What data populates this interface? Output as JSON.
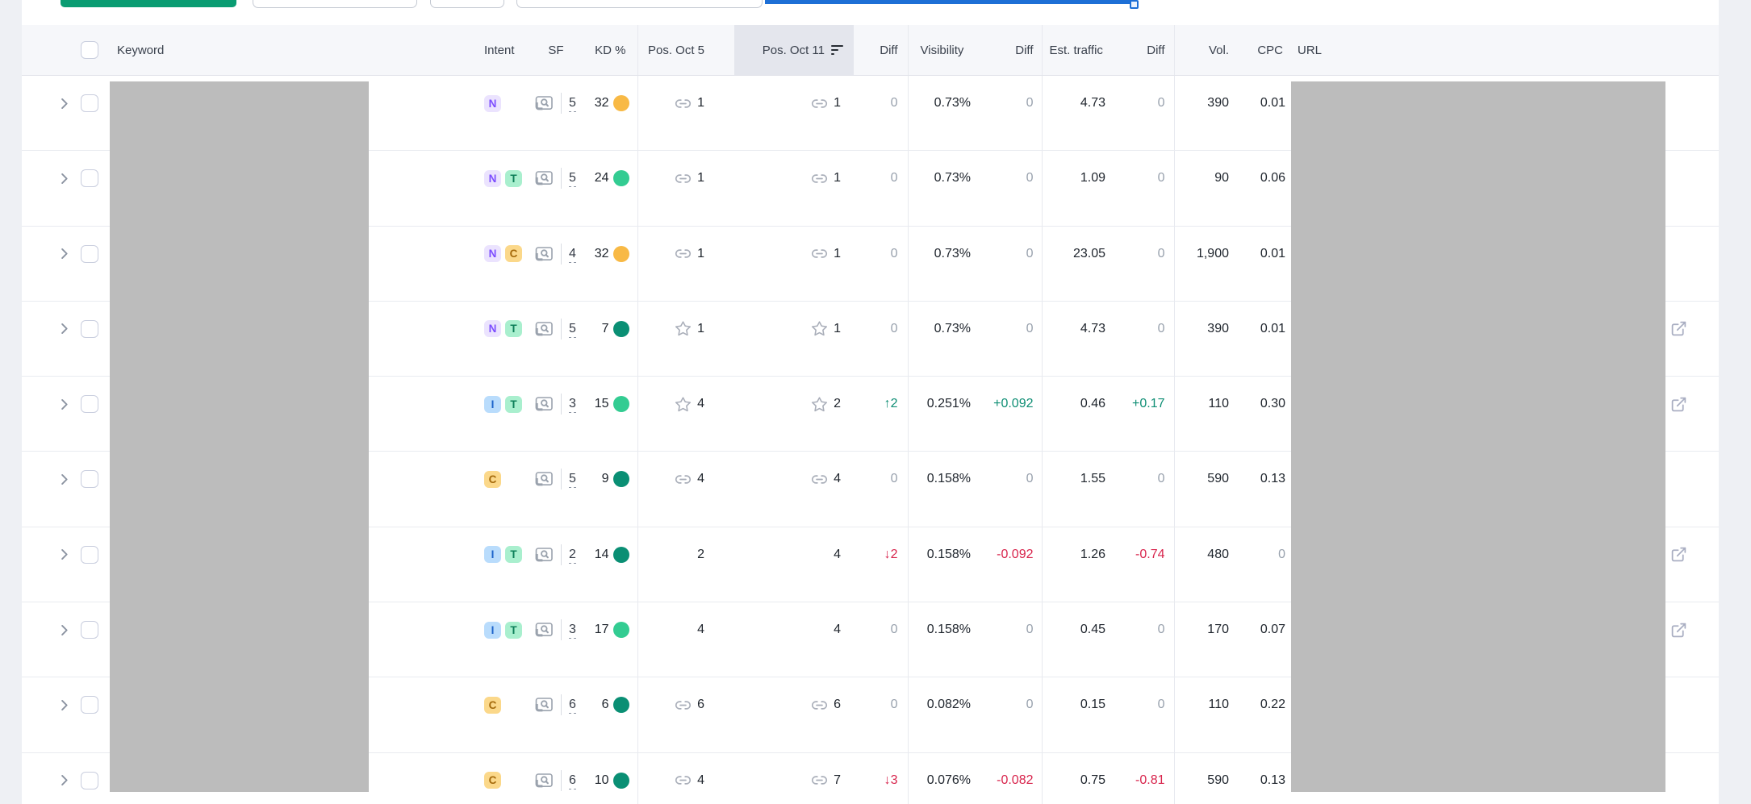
{
  "colors": {
    "accent_green_button": "#0a9c72",
    "slider_blue": "#1d6fd6",
    "positive": "#0e8e74",
    "negative": "#d8244c",
    "muted_zero": "#98a1ad",
    "kd_amber": "#f8b945",
    "kd_light_green": "#33cc92",
    "kd_dark_green": "#0a8f74",
    "sorted_header_bg": "#e4e6ed",
    "header_bg": "#f6f7fa",
    "redaction_gray": "#bcbcbc"
  },
  "header": {
    "keyword": "Keyword",
    "intent": "Intent",
    "sf": "SF",
    "kd": "KD %",
    "pos_oct5": "Pos. Oct 5",
    "pos_oct11": "Pos. Oct 11",
    "diff": "Diff",
    "visibility": "Visibility",
    "est_traffic": "Est. traffic",
    "vol": "Vol.",
    "cpc": "CPC",
    "url": "URL"
  },
  "table": {
    "sorted_column": "Pos. Oct 11",
    "rows": [
      {
        "intents": [
          "N"
        ],
        "sf": "5",
        "kd": "32",
        "kd_tone": "amber",
        "pos_icon": "link",
        "pos_oct5": "1",
        "pos_oct11": "1",
        "diff": {
          "text": "0",
          "tone": "zero"
        },
        "visibility": "0.73%",
        "visibility_diff": {
          "text": "0",
          "tone": "zero"
        },
        "est_traffic": "4.73",
        "est_traffic_diff": {
          "text": "0",
          "tone": "zero"
        },
        "volume": "390",
        "cpc": "0.01",
        "cpc_tone": "",
        "url_external_link": false
      },
      {
        "intents": [
          "N",
          "T"
        ],
        "sf": "5",
        "kd": "24",
        "kd_tone": "light",
        "pos_icon": "link",
        "pos_oct5": "1",
        "pos_oct11": "1",
        "diff": {
          "text": "0",
          "tone": "zero"
        },
        "visibility": "0.73%",
        "visibility_diff": {
          "text": "0",
          "tone": "zero"
        },
        "est_traffic": "1.09",
        "est_traffic_diff": {
          "text": "0",
          "tone": "zero"
        },
        "volume": "90",
        "cpc": "0.06",
        "cpc_tone": "",
        "url_external_link": false
      },
      {
        "intents": [
          "N",
          "C"
        ],
        "sf": "4",
        "kd": "32",
        "kd_tone": "amber",
        "pos_icon": "link",
        "pos_oct5": "1",
        "pos_oct11": "1",
        "diff": {
          "text": "0",
          "tone": "zero"
        },
        "visibility": "0.73%",
        "visibility_diff": {
          "text": "0",
          "tone": "zero"
        },
        "est_traffic": "23.05",
        "est_traffic_diff": {
          "text": "0",
          "tone": "zero"
        },
        "volume": "1,900",
        "cpc": "0.01",
        "cpc_tone": "",
        "url_external_link": false
      },
      {
        "intents": [
          "N",
          "T"
        ],
        "sf": "5",
        "kd": "7",
        "kd_tone": "dark",
        "pos_icon": "star",
        "pos_oct5": "1",
        "pos_oct11": "1",
        "diff": {
          "text": "0",
          "tone": "zero"
        },
        "visibility": "0.73%",
        "visibility_diff": {
          "text": "0",
          "tone": "zero"
        },
        "est_traffic": "4.73",
        "est_traffic_diff": {
          "text": "0",
          "tone": "zero"
        },
        "volume": "390",
        "cpc": "0.01",
        "cpc_tone": "",
        "url_external_link": true
      },
      {
        "intents": [
          "I",
          "T"
        ],
        "sf": "3",
        "kd": "15",
        "kd_tone": "light",
        "pos_icon": "star",
        "pos_oct5": "4",
        "pos_oct11": "2",
        "diff": {
          "text": "↑2",
          "tone": "up"
        },
        "visibility": "0.251%",
        "visibility_diff": {
          "text": "+0.092",
          "tone": "up"
        },
        "est_traffic": "0.46",
        "est_traffic_diff": {
          "text": "+0.17",
          "tone": "up"
        },
        "volume": "110",
        "cpc": "0.30",
        "cpc_tone": "",
        "url_external_link": true
      },
      {
        "intents": [
          "C"
        ],
        "sf": "5",
        "kd": "9",
        "kd_tone": "dark",
        "pos_icon": "link",
        "pos_oct5": "4",
        "pos_oct11": "4",
        "diff": {
          "text": "0",
          "tone": "zero"
        },
        "visibility": "0.158%",
        "visibility_diff": {
          "text": "0",
          "tone": "zero"
        },
        "est_traffic": "1.55",
        "est_traffic_diff": {
          "text": "0",
          "tone": "zero"
        },
        "volume": "590",
        "cpc": "0.13",
        "cpc_tone": "",
        "url_external_link": false
      },
      {
        "intents": [
          "I",
          "T"
        ],
        "sf": "2",
        "kd": "14",
        "kd_tone": "dark",
        "pos_icon": "none",
        "pos_oct5": "2",
        "pos_oct11": "4",
        "diff": {
          "text": "↓2",
          "tone": "down"
        },
        "visibility": "0.158%",
        "visibility_diff": {
          "text": "-0.092",
          "tone": "down"
        },
        "est_traffic": "1.26",
        "est_traffic_diff": {
          "text": "-0.74",
          "tone": "down"
        },
        "volume": "480",
        "cpc": "0",
        "cpc_tone": "zero",
        "url_external_link": true
      },
      {
        "intents": [
          "I",
          "T"
        ],
        "sf": "3",
        "kd": "17",
        "kd_tone": "light",
        "pos_icon": "none",
        "pos_oct5": "4",
        "pos_oct11": "4",
        "diff": {
          "text": "0",
          "tone": "zero"
        },
        "visibility": "0.158%",
        "visibility_diff": {
          "text": "0",
          "tone": "zero"
        },
        "est_traffic": "0.45",
        "est_traffic_diff": {
          "text": "0",
          "tone": "zero"
        },
        "volume": "170",
        "cpc": "0.07",
        "cpc_tone": "",
        "url_external_link": true
      },
      {
        "intents": [
          "C"
        ],
        "sf": "6",
        "kd": "6",
        "kd_tone": "dark",
        "pos_icon": "link",
        "pos_oct5": "6",
        "pos_oct11": "6",
        "diff": {
          "text": "0",
          "tone": "zero"
        },
        "visibility": "0.082%",
        "visibility_diff": {
          "text": "0",
          "tone": "zero"
        },
        "est_traffic": "0.15",
        "est_traffic_diff": {
          "text": "0",
          "tone": "zero"
        },
        "volume": "110",
        "cpc": "0.22",
        "cpc_tone": "",
        "url_external_link": false
      },
      {
        "intents": [
          "C"
        ],
        "sf": "6",
        "kd": "10",
        "kd_tone": "dark",
        "pos_icon": "link",
        "pos_oct5": "4",
        "pos_oct11": "7",
        "diff": {
          "text": "↓3",
          "tone": "down"
        },
        "visibility": "0.076%",
        "visibility_diff": {
          "text": "-0.082",
          "tone": "down"
        },
        "est_traffic": "0.75",
        "est_traffic_diff": {
          "text": "-0.81",
          "tone": "down"
        },
        "volume": "590",
        "cpc": "0.13",
        "cpc_tone": "",
        "url_external_link": false
      }
    ]
  }
}
